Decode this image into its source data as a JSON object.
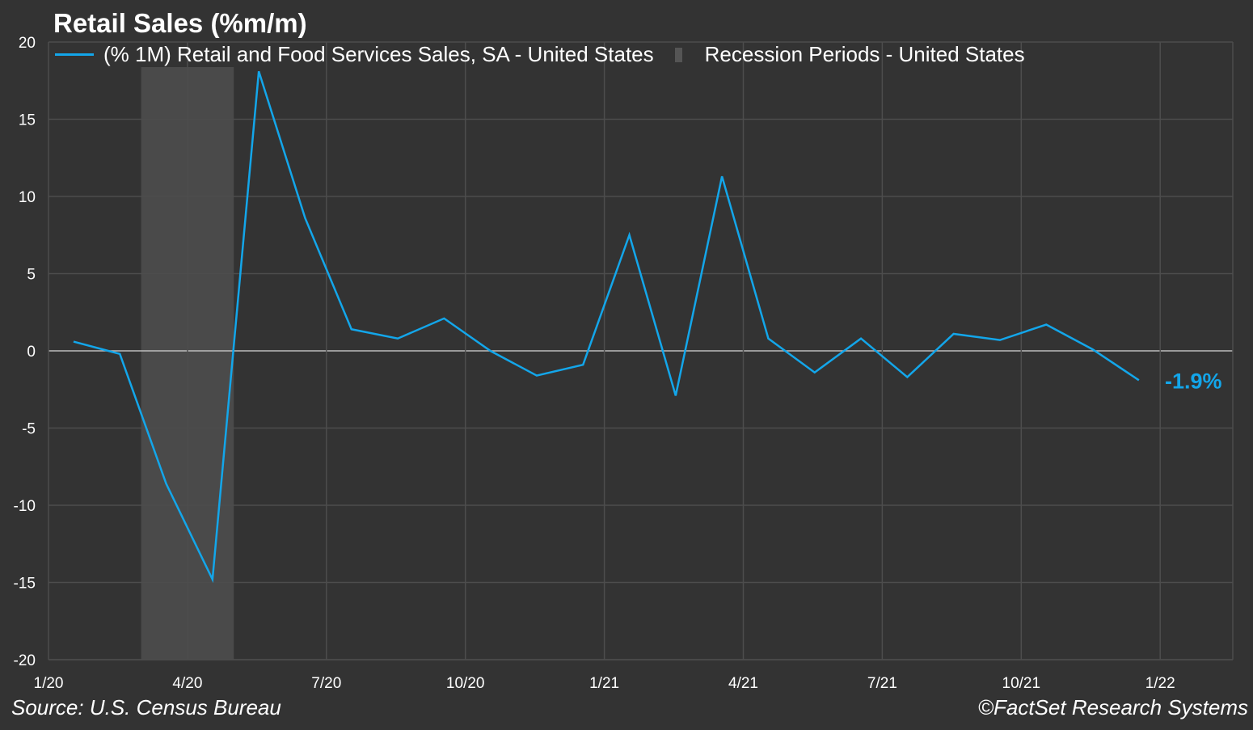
{
  "chart_data": {
    "type": "line",
    "title": "Retail Sales (%m/m)",
    "xlabel": "",
    "ylabel": "",
    "ylim": [
      -20,
      20
    ],
    "xlim": [
      "2020-01",
      "2022-02"
    ],
    "yticks": [
      20,
      15,
      10,
      5,
      0,
      -5,
      -10,
      -15,
      -20
    ],
    "xticks": [
      {
        "label": "1/20",
        "month": "2020-01"
      },
      {
        "label": "4/20",
        "month": "2020-04"
      },
      {
        "label": "7/20",
        "month": "2020-07"
      },
      {
        "label": "10/20",
        "month": "2020-10"
      },
      {
        "label": "1/21",
        "month": "2021-01"
      },
      {
        "label": "4/21",
        "month": "2021-04"
      },
      {
        "label": "7/21",
        "month": "2021-07"
      },
      {
        "label": "10/21",
        "month": "2021-10"
      },
      {
        "label": "1/22",
        "month": "2022-01"
      }
    ],
    "grid": true,
    "legend_placement": "top-left",
    "series": [
      {
        "name": "(% 1M) Retail and Food Services Sales, SA - United States",
        "color": "#13a6ea",
        "x": [
          "2020-01",
          "2020-02",
          "2020-03",
          "2020-04",
          "2020-05",
          "2020-06",
          "2020-07",
          "2020-08",
          "2020-09",
          "2020-10",
          "2020-11",
          "2020-12",
          "2021-01",
          "2021-02",
          "2021-03",
          "2021-04",
          "2021-05",
          "2021-06",
          "2021-07",
          "2021-08",
          "2021-09",
          "2021-10",
          "2021-11",
          "2021-12"
        ],
        "values": [
          0.6,
          -0.2,
          -8.6,
          -14.8,
          18.1,
          8.6,
          1.4,
          0.8,
          2.1,
          0.0,
          -1.6,
          -0.9,
          7.5,
          -2.9,
          11.3,
          0.8,
          -1.4,
          0.8,
          -1.7,
          1.1,
          0.7,
          1.7,
          0.1,
          -1.9
        ]
      }
    ],
    "recession": {
      "name": "Recession Periods - United States",
      "color": "#4a4a4a",
      "periods": [
        [
          "2020-03",
          "2020-04"
        ]
      ]
    },
    "last_value_label": "-1.9%"
  },
  "footer": {
    "source": "Source: U.S. Census Bureau",
    "copyright": "©FactSet Research Systems"
  }
}
